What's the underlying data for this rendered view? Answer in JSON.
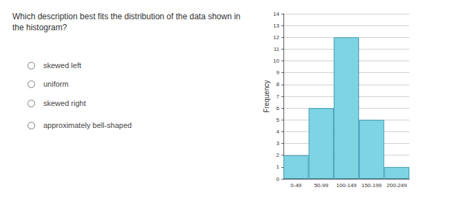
{
  "question": "Which description best fits the distribution of the data shown in the histogram?",
  "options": [
    "skewed left",
    "uniform",
    "skewed right",
    "approximately bell-shaped"
  ],
  "chart_data": {
    "type": "bar",
    "categories": [
      "0-49",
      "50-99",
      "100-149",
      "150-199",
      "200-249"
    ],
    "values": [
      2,
      6,
      12,
      5,
      1
    ],
    "color": "#7fd4e4",
    "y_label": "Frequency",
    "ylim": [
      0,
      14
    ],
    "yticks": [
      0,
      1,
      2,
      3,
      4,
      5,
      6,
      7,
      8,
      9,
      10,
      11,
      12,
      13,
      14
    ],
    "grid": true
  }
}
